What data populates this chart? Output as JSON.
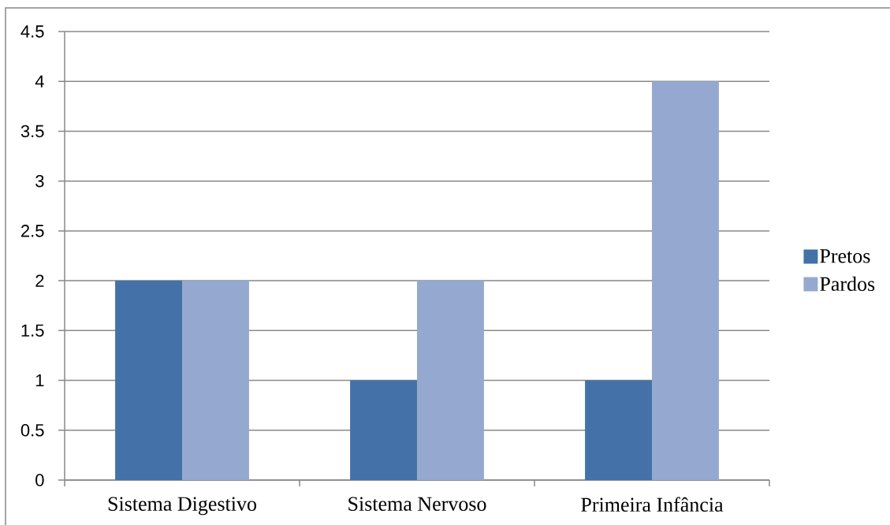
{
  "chart_data": {
    "type": "bar",
    "categories": [
      "Sistema Digestivo",
      "Sistema Nervoso",
      "Primeira Infância"
    ],
    "series": [
      {
        "name": "Pretos",
        "color": "#4472A8",
        "values": [
          2,
          1,
          1
        ]
      },
      {
        "name": "Pardos",
        "color": "#95A9D0",
        "values": [
          2,
          2,
          4
        ]
      }
    ],
    "ylim": [
      0,
      4.5
    ],
    "yticks": [
      0,
      0.5,
      1,
      1.5,
      2,
      2.5,
      3,
      3.5,
      4,
      4.5
    ],
    "grid": "y",
    "legend": "right"
  }
}
